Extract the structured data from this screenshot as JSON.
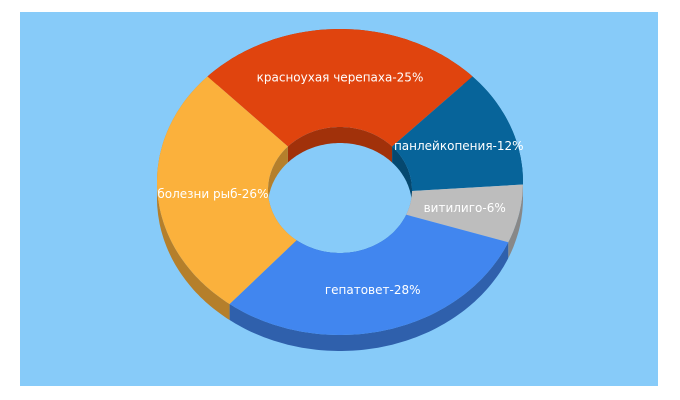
{
  "chart_data": {
    "type": "donut3d",
    "labels": [
      "красноухая черепаха-25%",
      "панлейкопения-12%",
      "витилиго-6%",
      "гепатовет-28%",
      "болезни рыб-26%"
    ],
    "values": [
      25,
      12,
      6,
      28,
      26
    ],
    "colors": [
      "#e0440e",
      "#07649a",
      "#bdbdbd",
      "#4186ef",
      "#fbb13c"
    ],
    "background": "#87cbf9"
  }
}
